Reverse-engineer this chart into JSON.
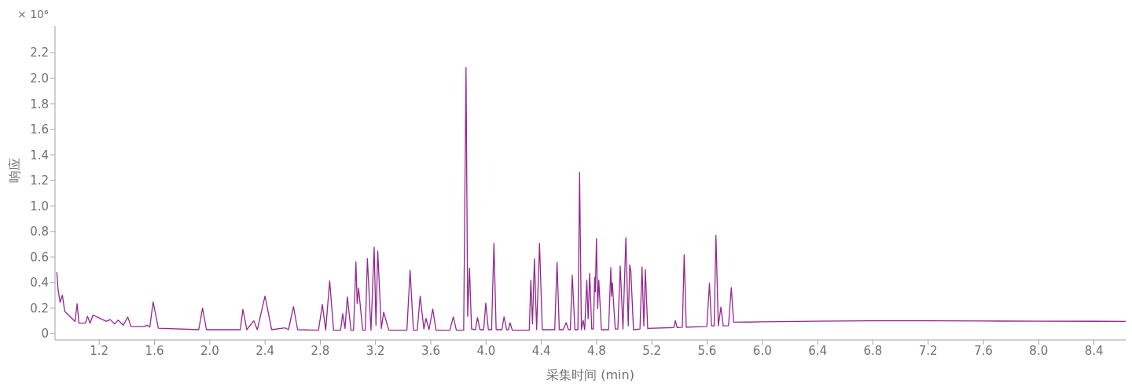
{
  "chart_data": {
    "type": "line",
    "xlabel": "采集时间 (min)",
    "ylabel": "响应",
    "annotations": [
      "× 10⁶"
    ],
    "xlim": [
      0.88,
      8.63
    ],
    "ylim": [
      -0.05,
      2.41
    ],
    "xticks": [
      1.2,
      1.6,
      {
        "value": 2.0,
        "label": "2.0"
      },
      2.4,
      2.8,
      3.2,
      3.6,
      {
        "value": 4.0,
        "label": "4.0"
      },
      4.4,
      4.8,
      5.2,
      5.6,
      {
        "value": 6.0,
        "label": "6.0"
      },
      6.4,
      6.8,
      7.2,
      7.6,
      {
        "value": 8.0,
        "label": "8.0"
      },
      8.4
    ],
    "yticks": [
      0,
      0.2,
      0.4,
      0.6,
      0.8,
      {
        "value": 1.0,
        "label": "1.0"
      },
      1.2,
      1.4,
      1.6,
      1.8,
      {
        "value": 2.0,
        "label": "2.0"
      },
      2.2
    ],
    "grid": false,
    "legend": false,
    "marker": "none",
    "line_style": "solid",
    "series": [
      {
        "color": "#93298f",
        "x": [
          0.893,
          0.902,
          0.917,
          0.933,
          0.95,
          1.025,
          1.04,
          1.053,
          1.1,
          1.115,
          1.134,
          1.155,
          1.251,
          1.279,
          1.313,
          1.336,
          1.374,
          1.407,
          1.43,
          1.524,
          1.547,
          1.566,
          1.59,
          1.628,
          1.92,
          1.948,
          1.976,
          2.221,
          2.24,
          2.268,
          2.319,
          2.344,
          2.4,
          2.448,
          2.545,
          2.57,
          2.606,
          2.636,
          2.787,
          2.815,
          2.839,
          2.868,
          2.896,
          2.947,
          2.962,
          2.979,
          2.996,
          3.022,
          3.041,
          3.058,
          3.067,
          3.077,
          3.107,
          3.126,
          3.141,
          3.167,
          3.19,
          3.203,
          3.216,
          3.242,
          3.259,
          3.296,
          3.427,
          3.45,
          3.474,
          3.502,
          3.523,
          3.55,
          3.565,
          3.587,
          3.614,
          3.638,
          3.738,
          3.763,
          3.785,
          3.838,
          3.855,
          3.867,
          3.88,
          3.895,
          3.923,
          3.938,
          3.955,
          3.983,
          3.998,
          4.017,
          4.04,
          4.057,
          4.073,
          4.115,
          4.13,
          4.149,
          4.162,
          4.173,
          4.19,
          4.313,
          4.324,
          4.336,
          4.35,
          4.366,
          4.387,
          4.407,
          4.497,
          4.514,
          4.53,
          4.558,
          4.58,
          4.596,
          4.61,
          4.624,
          4.643,
          4.665,
          4.677,
          4.69,
          4.703,
          4.714,
          4.729,
          4.739,
          4.75,
          4.765,
          4.777,
          4.786,
          4.791,
          4.799,
          4.808,
          4.816,
          4.835,
          4.887,
          4.903,
          4.908,
          4.914,
          4.935,
          4.954,
          4.971,
          4.991,
          5.012,
          5.029,
          5.04,
          5.048,
          5.067,
          5.114,
          5.129,
          5.142,
          5.153,
          5.17,
          5.359,
          5.37,
          5.383,
          5.421,
          5.434,
          5.449,
          5.598,
          5.617,
          5.632,
          5.651,
          5.664,
          5.681,
          5.7,
          5.717,
          5.755,
          5.775,
          5.792,
          5.915,
          6.0,
          6.4,
          6.8,
          7.2,
          7.6,
          8.0,
          8.4,
          8.63
        ],
        "values": [
          0.48,
          0.345,
          0.244,
          0.3,
          0.175,
          0.095,
          0.234,
          0.081,
          0.081,
          0.135,
          0.081,
          0.145,
          0.095,
          0.109,
          0.075,
          0.105,
          0.065,
          0.129,
          0.055,
          0.055,
          0.065,
          0.05,
          0.248,
          0.042,
          0.03,
          0.2,
          0.03,
          0.03,
          0.189,
          0.03,
          0.1,
          0.03,
          0.293,
          0.03,
          0.044,
          0.03,
          0.21,
          0.03,
          0.026,
          0.228,
          0.026,
          0.412,
          0.026,
          0.026,
          0.155,
          0.04,
          0.288,
          0.026,
          0.026,
          0.561,
          0.234,
          0.357,
          0.026,
          0.026,
          0.587,
          0.026,
          0.677,
          0.065,
          0.645,
          0.04,
          0.168,
          0.026,
          0.026,
          0.496,
          0.026,
          0.026,
          0.293,
          0.035,
          0.119,
          0.03,
          0.192,
          0.026,
          0.026,
          0.131,
          0.026,
          0.026,
          2.085,
          0.135,
          0.512,
          0.036,
          0.03,
          0.125,
          0.03,
          0.03,
          0.238,
          0.03,
          0.03,
          0.707,
          0.03,
          0.03,
          0.131,
          0.03,
          0.03,
          0.085,
          0.026,
          0.026,
          0.417,
          0.075,
          0.585,
          0.03,
          0.707,
          0.03,
          0.03,
          0.558,
          0.03,
          0.03,
          0.085,
          0.03,
          0.03,
          0.458,
          0.03,
          0.03,
          1.262,
          0.03,
          0.105,
          0.03,
          0.418,
          0.115,
          0.472,
          0.035,
          0.035,
          0.439,
          0.327,
          0.744,
          0.195,
          0.418,
          0.03,
          0.03,
          0.516,
          0.293,
          0.399,
          0.035,
          0.035,
          0.528,
          0.035,
          0.75,
          0.061,
          0.538,
          0.492,
          0.03,
          0.035,
          0.522,
          0.06,
          0.502,
          0.04,
          0.047,
          0.101,
          0.047,
          0.049,
          0.617,
          0.05,
          0.055,
          0.393,
          0.06,
          0.06,
          0.77,
          0.06,
          0.208,
          0.06,
          0.062,
          0.359,
          0.089,
          0.09,
          0.092,
          0.097,
          0.1,
          0.1,
          0.098,
          0.097,
          0.096,
          0.095
        ]
      }
    ]
  }
}
